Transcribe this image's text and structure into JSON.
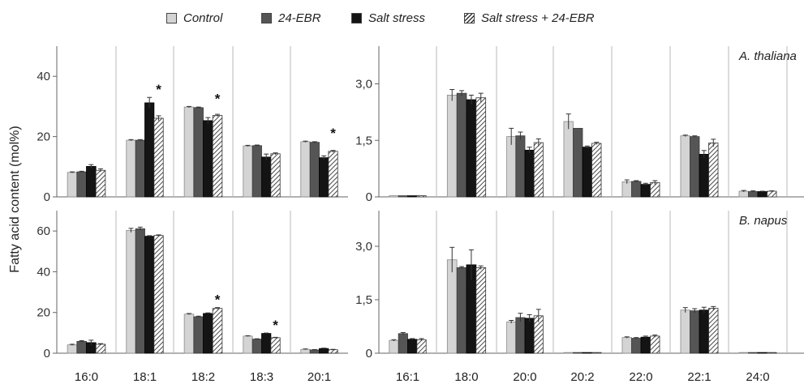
{
  "chart_data": {
    "type": "bar",
    "ylabel": "Fatty acid content (mol%)",
    "series": [
      {
        "name": "Control",
        "color": "#d4d4d4",
        "pattern": "solid"
      },
      {
        "name": "24-EBR",
        "color": "#555555",
        "pattern": "solid"
      },
      {
        "name": "Salt stress",
        "color": "#141414",
        "pattern": "solid"
      },
      {
        "name": "Salt stress + 24-EBR",
        "color": "#ffffff",
        "pattern": "hatched"
      }
    ],
    "x_major_categories": [
      "16:0",
      "18:1",
      "18:2",
      "18:3",
      "20:1"
    ],
    "x_minor_categories": [
      "16:1",
      "18:0",
      "20:0",
      "20:2",
      "22:0",
      "22:1",
      "24:0"
    ],
    "panels": [
      {
        "species": "A. thaliana",
        "major": {
          "ylim": [
            0,
            50
          ],
          "yticks": [
            {
              "v": 0,
              "label": "0"
            },
            {
              "v": 20,
              "label": "20"
            },
            {
              "v": 40,
              "label": "40"
            }
          ],
          "values": [
            [
              8.1,
              8.3,
              10.1,
              8.8
            ],
            [
              18.8,
              18.8,
              31.2,
              26.1
            ],
            [
              29.8,
              29.6,
              25.3,
              27.0
            ],
            [
              16.9,
              17.0,
              13.2,
              14.3
            ],
            [
              18.3,
              18.1,
              13.0,
              15.1
            ]
          ],
          "errors": [
            [
              0.2,
              0.2,
              0.6,
              0.5
            ],
            [
              0.2,
              0.2,
              1.8,
              0.8
            ],
            [
              0.2,
              0.2,
              1.0,
              0.4
            ],
            [
              0.2,
              0.2,
              1.0,
              0.3
            ],
            [
              0.2,
              0.2,
              0.6,
              0.3
            ]
          ],
          "significant": [
            "18:1",
            "18:2",
            "20:1"
          ]
        },
        "minor": {
          "ylim": [
            0,
            4.0
          ],
          "yticks": [
            {
              "v": 0,
              "label": "0"
            },
            {
              "v": 1.5,
              "label": "1,5"
            },
            {
              "v": 3.0,
              "label": "3,0"
            }
          ],
          "values": [
            [
              0.03,
              0.03,
              0.03,
              0.03
            ],
            [
              2.7,
              2.75,
              2.58,
              2.63
            ],
            [
              1.6,
              1.62,
              1.24,
              1.44
            ],
            [
              2.0,
              1.82,
              1.32,
              1.42
            ],
            [
              0.4,
              0.41,
              0.33,
              0.38
            ],
            [
              1.62,
              1.6,
              1.13,
              1.43
            ],
            [
              0.15,
              0.14,
              0.14,
              0.15
            ]
          ],
          "errors": [
            [
              0.0,
              0.0,
              0.0,
              0.0
            ],
            [
              0.15,
              0.07,
              0.12,
              0.12
            ],
            [
              0.22,
              0.1,
              0.08,
              0.1
            ],
            [
              0.2,
              0.0,
              0.03,
              0.03
            ],
            [
              0.05,
              0.02,
              0.03,
              0.05
            ],
            [
              0.02,
              0.02,
              0.1,
              0.1
            ],
            [
              0.02,
              0.02,
              0.01,
              0.01
            ]
          ]
        }
      },
      {
        "species": "B. napus",
        "major": {
          "ylim": [
            0,
            70
          ],
          "yticks": [
            {
              "v": 0,
              "label": "0"
            },
            {
              "v": 20,
              "label": "20"
            },
            {
              "v": 40,
              "label": "40"
            },
            {
              "v": 60,
              "label": "60"
            }
          ],
          "values": [
            [
              4.1,
              5.8,
              5.2,
              4.4
            ],
            [
              60.3,
              61.1,
              57.4,
              57.8
            ],
            [
              19.2,
              17.9,
              19.5,
              22.0
            ],
            [
              8.4,
              6.9,
              9.7,
              7.6
            ],
            [
              1.9,
              1.6,
              2.3,
              1.7
            ]
          ],
          "errors": [
            [
              0.3,
              0.4,
              1.2,
              0.3
            ],
            [
              1.0,
              0.8,
              0.3,
              0.3
            ],
            [
              0.3,
              0.3,
              0.3,
              0.4
            ],
            [
              0.2,
              0.2,
              0.2,
              0.2
            ],
            [
              0.2,
              0.2,
              0.2,
              0.2
            ]
          ],
          "significant": [
            "18:2",
            "18:3"
          ]
        },
        "minor": {
          "ylim": [
            0,
            4.0
          ],
          "yticks": [
            {
              "v": 0,
              "label": "0"
            },
            {
              "v": 1.5,
              "label": "1,5"
            },
            {
              "v": 3.0,
              "label": "3,0"
            }
          ],
          "values": [
            [
              0.36,
              0.55,
              0.39,
              0.38
            ],
            [
              2.62,
              2.4,
              2.48,
              2.4
            ],
            [
              0.88,
              1.0,
              0.98,
              1.05
            ],
            [
              0.02,
              0.02,
              0.02,
              0.02
            ],
            [
              0.44,
              0.42,
              0.45,
              0.48
            ],
            [
              1.21,
              1.19,
              1.21,
              1.26
            ],
            [
              0.02,
              0.02,
              0.02,
              0.02
            ]
          ],
          "errors": [
            [
              0.02,
              0.03,
              0.02,
              0.03
            ],
            [
              0.35,
              0.03,
              0.42,
              0.05
            ],
            [
              0.04,
              0.12,
              0.1,
              0.18
            ],
            [
              0.0,
              0.0,
              0.0,
              0.0
            ],
            [
              0.02,
              0.02,
              0.03,
              0.03
            ],
            [
              0.07,
              0.06,
              0.08,
              0.05
            ],
            [
              0.0,
              0.0,
              0.0,
              0.0
            ]
          ]
        }
      }
    ]
  }
}
